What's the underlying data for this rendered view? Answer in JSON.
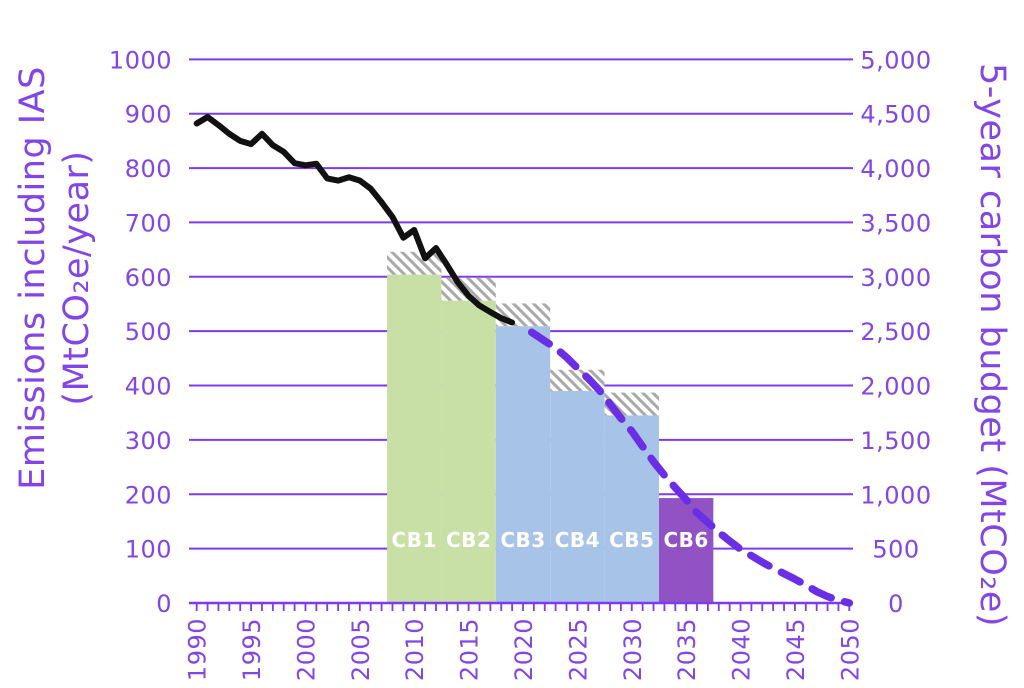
{
  "left_axis_title": {
    "line1": "Emissions including IAS",
    "line2": "(MtCO₂e/year)"
  },
  "right_axis_title": {
    "text": "5-year carbon budget (MtCO₂e)"
  },
  "chart_data": {
    "type": "line",
    "title": "",
    "grid": "horizontal",
    "legend_position": "none",
    "left_axis": {
      "label": "Emissions including IAS (MtCO₂e/year)",
      "range": [
        0,
        1000
      ],
      "tick_step": 100,
      "tick_labels": [
        "0",
        "100",
        "200",
        "300",
        "400",
        "500",
        "600",
        "700",
        "800",
        "900",
        "1000"
      ]
    },
    "right_axis": {
      "label": "5-year carbon budget (MtCO₂e)",
      "range": [
        0,
        5000
      ],
      "tick_step": 500,
      "tick_labels": [
        "0",
        "500",
        "1,000",
        "1,500",
        "2,000",
        "2,500",
        "3,000",
        "3,500",
        "4,000",
        "4,500",
        "5,000"
      ]
    },
    "x_axis": {
      "range": [
        1990,
        2050
      ],
      "minor_tick_every": 1,
      "labeled_ticks": [
        "1990",
        "1995",
        "2000",
        "2005",
        "2010",
        "2015",
        "2020",
        "2025",
        "2030",
        "2035",
        "2040",
        "2045",
        "2050"
      ]
    },
    "series": [
      {
        "name": "historical-emissions-including-ias",
        "style": "solid",
        "color": "#111111",
        "points": [
          [
            1990,
            882
          ],
          [
            1991,
            894
          ],
          [
            1992,
            879
          ],
          [
            1993,
            863
          ],
          [
            1994,
            850
          ],
          [
            1995,
            844
          ],
          [
            1996,
            863
          ],
          [
            1997,
            842
          ],
          [
            1998,
            830
          ],
          [
            1999,
            809
          ],
          [
            2000,
            805
          ],
          [
            2001,
            808
          ],
          [
            2002,
            781
          ],
          [
            2003,
            777
          ],
          [
            2004,
            783
          ],
          [
            2005,
            777
          ],
          [
            2006,
            762
          ],
          [
            2007,
            737
          ],
          [
            2008,
            710
          ],
          [
            2009,
            672
          ],
          [
            2010,
            686
          ],
          [
            2011,
            634
          ],
          [
            2012,
            653
          ],
          [
            2013,
            622
          ],
          [
            2014,
            590
          ],
          [
            2015,
            565
          ],
          [
            2016,
            547
          ],
          [
            2017,
            535
          ],
          [
            2018,
            524
          ],
          [
            2019,
            516
          ]
        ]
      },
      {
        "name": "projected-pathway-to-zero",
        "style": "dashed",
        "color": "#6a2ee6",
        "points": [
          [
            2020.8,
            498
          ],
          [
            2022,
            482
          ],
          [
            2023,
            469
          ],
          [
            2024,
            452
          ],
          [
            2025,
            432
          ],
          [
            2026,
            413
          ],
          [
            2027,
            392
          ],
          [
            2028,
            366
          ],
          [
            2029,
            340
          ],
          [
            2030,
            316
          ],
          [
            2031,
            288
          ],
          [
            2032,
            260
          ],
          [
            2033,
            235
          ],
          [
            2034,
            212
          ],
          [
            2035,
            190
          ],
          [
            2036,
            166
          ],
          [
            2037,
            148
          ],
          [
            2038,
            130
          ],
          [
            2039,
            114
          ],
          [
            2040,
            99
          ],
          [
            2041,
            87
          ],
          [
            2042,
            75
          ],
          [
            2043,
            64
          ],
          [
            2044,
            54
          ],
          [
            2045,
            44
          ],
          [
            2046,
            33
          ],
          [
            2047,
            21
          ],
          [
            2048,
            12
          ],
          [
            2049,
            5
          ],
          [
            2050,
            0
          ]
        ]
      }
    ],
    "carbon_budgets": {
      "note_label_color": "#ffffff",
      "bars": [
        {
          "label": "CB1",
          "years": [
            2007.5,
            2012.5
          ],
          "budget_5yr_MtCO2e": 3020,
          "annual_level": 604,
          "hatch_top_annual": 646,
          "color": "#c8e0a5"
        },
        {
          "label": "CB2",
          "years": [
            2012.5,
            2017.5
          ],
          "budget_5yr_MtCO2e": 2780,
          "annual_level": 556,
          "hatch_top_annual": 598,
          "color": "#c8e0a5"
        },
        {
          "label": "CB3",
          "years": [
            2017.5,
            2022.5
          ],
          "budget_5yr_MtCO2e": 2545,
          "annual_level": 509,
          "hatch_top_annual": 551,
          "color": "#a8c3e8"
        },
        {
          "label": "CB4",
          "years": [
            2022.5,
            2027.5
          ],
          "budget_5yr_MtCO2e": 1950,
          "annual_level": 390,
          "hatch_top_annual": 429,
          "color": "#a8c3e8"
        },
        {
          "label": "CB5",
          "years": [
            2027.5,
            2032.5
          ],
          "budget_5yr_MtCO2e": 1725,
          "annual_level": 345,
          "hatch_top_annual": 387,
          "color": "#a8c3e8"
        },
        {
          "label": "CB6",
          "years": [
            2032.5,
            2037.5
          ],
          "budget_5yr_MtCO2e": 965,
          "annual_level": 193,
          "hatch_top_annual": null,
          "color": "#9153c3"
        }
      ]
    },
    "colors": {
      "grid": "#7d3af0",
      "axis": "#7d3af0",
      "axis_text": "#8345e8",
      "hatch_stripe": "#a9a9a9",
      "hatch_background": "#ffffff"
    }
  }
}
